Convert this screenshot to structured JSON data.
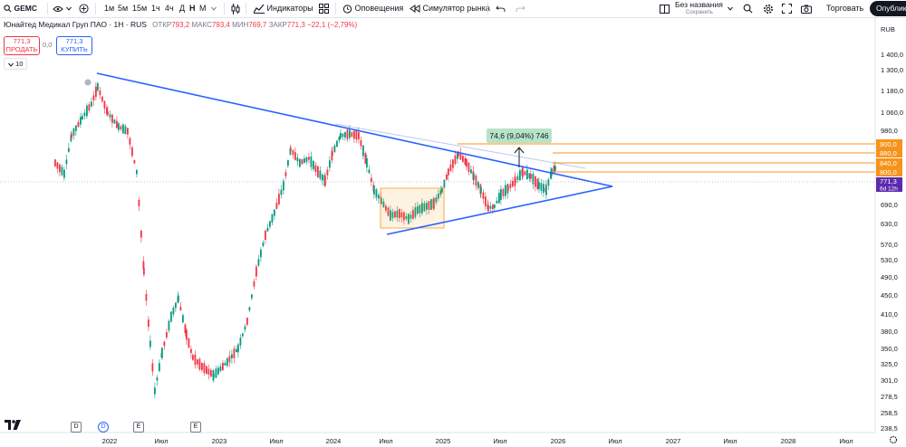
{
  "toolbar": {
    "symbol": "GEMC",
    "intervals": [
      "1м",
      "5м",
      "15м",
      "1ч",
      "4ч",
      "Д",
      "Н",
      "М"
    ],
    "indicators_label": "Индикаторы",
    "alerts_label": "Оповещения",
    "replay_label": "Симулятор рынка",
    "layout_name": "Без названия",
    "layout_status": "Сохранить",
    "trade_label": "Торговать",
    "publish_label": "Опубликов"
  },
  "legend": {
    "title": "Юнайтед Медикал Груп ПАО · 1Н · RUS",
    "open_label": "ОТКР",
    "open": "793,2",
    "high_label": "МАКС",
    "high": "793,4",
    "low_label": "МИН",
    "low": "769,7",
    "close_label": "ЗАКР",
    "close": "771,3",
    "change": "−22,1 (−2,79%)",
    "sell_price": "771,3",
    "sell_label": "ПРОДАТЬ",
    "spread": "0,0",
    "buy_price": "771,3",
    "buy_label": "КУПИТЬ",
    "indicators_count": "10"
  },
  "colors": {
    "up": "#089981",
    "down": "#f23645",
    "trendline": "#2962ff",
    "level": "#f7931a",
    "price_badge": "#5b2aaf",
    "measure_bg": "#b7e4c7"
  },
  "price_axis": {
    "currency": "RUB",
    "ticks": [
      "1 400,0",
      "1 300,0",
      "1 180,0",
      "1 060,0",
      "980,0",
      "690,0",
      "630,0",
      "570,0",
      "530,0",
      "490,0",
      "450,0",
      "410,0",
      "380,0",
      "350,0",
      "325,0",
      "301,0",
      "278,5",
      "258,5",
      "238,5"
    ],
    "levels": [
      "900,0",
      "880,0",
      "840,0",
      "800,0"
    ],
    "last_price": "771,3",
    "countdown": "6d 12h"
  },
  "time_axis": {
    "labels": [
      "2022",
      "Июл",
      "2023",
      "Июл",
      "2024",
      "Июл",
      "2025",
      "Июл",
      "2026",
      "Июл",
      "2027",
      "Июл",
      "2028",
      "Июл"
    ]
  },
  "measure": {
    "text": "74,6 (9,04%) 746"
  },
  "event_markers": [
    "D",
    "D",
    "E",
    "E"
  ]
}
